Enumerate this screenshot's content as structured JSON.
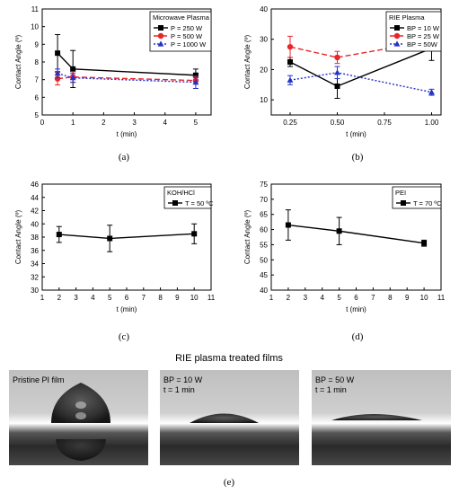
{
  "chart_data": [
    {
      "type": "line",
      "title": "Microwave Plasma",
      "panel_label": "(a)",
      "xlabel": "t (min)",
      "ylabel": "Contact Angle (º)",
      "xlim": [
        0,
        5.5
      ],
      "ylim": [
        5,
        11
      ],
      "xticks": [
        0,
        1,
        2,
        3,
        4,
        5
      ],
      "yticks": [
        5,
        6,
        7,
        8,
        9,
        10,
        11
      ],
      "grid": false,
      "legend_position": "top-right",
      "series": [
        {
          "name": "P = 250 W",
          "color": "#000000",
          "marker": "square",
          "dash": "solid",
          "x": [
            0.5,
            1,
            5
          ],
          "y": [
            8.5,
            7.6,
            7.25
          ],
          "err": [
            1.05,
            1.05,
            0.35
          ]
        },
        {
          "name": "P = 500 W",
          "color": "#e8262a",
          "marker": "circle",
          "dash": "dashed",
          "x": [
            0.5,
            1,
            5
          ],
          "y": [
            7.05,
            7.15,
            6.95
          ],
          "err": [
            0.35,
            0.3,
            0.2
          ]
        },
        {
          "name": "P = 1000 W",
          "color": "#2231c8",
          "marker": "triangle",
          "dash": "dotted",
          "x": [
            0.5,
            1,
            5
          ],
          "y": [
            7.35,
            7.1,
            6.85
          ],
          "err": [
            0.25,
            0.25,
            0.35
          ]
        }
      ]
    },
    {
      "type": "line",
      "title": "RIE Plasma",
      "panel_label": "(b)",
      "xlabel": "t (min)",
      "ylabel": "Contact Angle (º)",
      "xlim": [
        0.15,
        1.05
      ],
      "ylim": [
        5,
        40
      ],
      "xticks": [
        0.25,
        0.5,
        0.75,
        1.0
      ],
      "xtick_labels": [
        "0.25",
        "0.50",
        "0.75",
        "1.00"
      ],
      "yticks": [
        10,
        20,
        30,
        40
      ],
      "grid": false,
      "legend_position": "top-right",
      "series": [
        {
          "name": "BP = 10 W",
          "color": "#000000",
          "marker": "square",
          "dash": "solid",
          "x": [
            0.25,
            0.5,
            1.0
          ],
          "y": [
            22.5,
            14.5,
            27
          ],
          "err": [
            1.5,
            4,
            4
          ]
        },
        {
          "name": "BP = 25 W",
          "color": "#e8262a",
          "marker": "circle",
          "dash": "dashed",
          "x": [
            0.25,
            0.5,
            1.0
          ],
          "y": [
            27.5,
            24,
            29.5
          ],
          "err": [
            3.5,
            2,
            1.5
          ]
        },
        {
          "name": "BP = 50W",
          "color": "#2231c8",
          "marker": "triangle",
          "dash": "dotted",
          "x": [
            0.25,
            0.5,
            1.0
          ],
          "y": [
            16.5,
            19,
            12.5
          ],
          "err": [
            1.5,
            2,
            1
          ]
        }
      ]
    },
    {
      "type": "line",
      "title": "KOH/HCl",
      "panel_label": "(c)",
      "xlabel": "t (min)",
      "ylabel": "Contact Angle (º)",
      "xlim": [
        1,
        11
      ],
      "ylim": [
        30,
        46
      ],
      "xticks": [
        1,
        2,
        3,
        4,
        5,
        6,
        7,
        8,
        9,
        10,
        11
      ],
      "yticks": [
        30,
        32,
        34,
        36,
        38,
        40,
        42,
        44,
        46
      ],
      "grid": false,
      "legend_position": "top-right",
      "series": [
        {
          "name": "T = 50 ºC",
          "color": "#000000",
          "marker": "square",
          "dash": "solid",
          "x": [
            2,
            5,
            10
          ],
          "y": [
            38.4,
            37.8,
            38.5
          ],
          "err": [
            1.2,
            2,
            1.5
          ]
        }
      ]
    },
    {
      "type": "line",
      "title": "PEI",
      "panel_label": "(d)",
      "xlabel": "t (min)",
      "ylabel": "Contact Angle (º)",
      "xlim": [
        1,
        11
      ],
      "ylim": [
        40,
        75
      ],
      "xticks": [
        1,
        2,
        3,
        4,
        5,
        6,
        7,
        8,
        9,
        10,
        11
      ],
      "yticks": [
        40,
        45,
        50,
        55,
        60,
        65,
        70,
        75
      ],
      "grid": false,
      "legend_position": "top-right",
      "series": [
        {
          "name": "T = 70 ºC",
          "color": "#000000",
          "marker": "square",
          "dash": "solid",
          "x": [
            2,
            5,
            10
          ],
          "y": [
            61.5,
            59.5,
            55.5
          ],
          "err": [
            5,
            4.5,
            1
          ]
        }
      ]
    }
  ],
  "photos": {
    "title": "RIE plasma treated films",
    "panel_label": "(e)",
    "panels": [
      {
        "lines": [
          "Pristine PI film"
        ]
      },
      {
        "lines": [
          "BP = 10 W",
          "t = 1 min"
        ]
      },
      {
        "lines": [
          "BP = 50 W",
          "t = 1 min"
        ]
      }
    ]
  }
}
